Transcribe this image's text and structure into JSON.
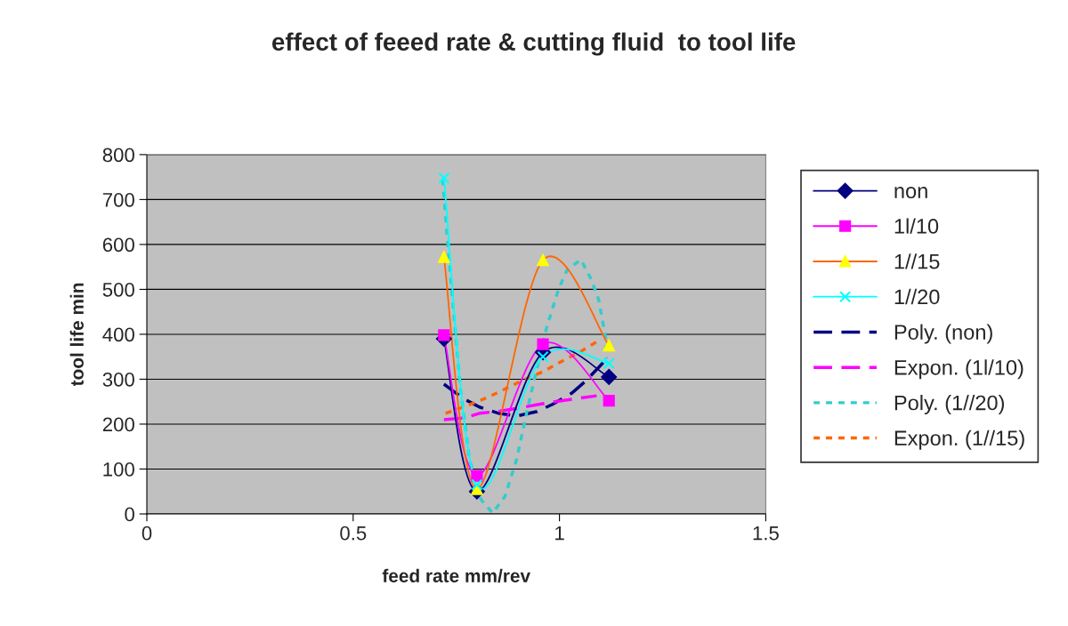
{
  "chart_data": {
    "type": "line",
    "title": "effect of feeed rate & cutting fluid  to tool life",
    "xlabel": "feed rate mm/rev",
    "ylabel": "tool life min",
    "xlim": [
      0,
      1.5
    ],
    "xticks": [
      0,
      0.5,
      1,
      1.5
    ],
    "ylim": [
      0,
      800
    ],
    "yticks": [
      0,
      100,
      200,
      300,
      400,
      500,
      600,
      700,
      800
    ],
    "grid": "y",
    "legend": "right",
    "series": [
      {
        "name": "non",
        "color": "#000080",
        "marker": "diamond",
        "x": [
          0.72,
          0.8,
          0.96,
          1.12
        ],
        "values": [
          390,
          50,
          360,
          305
        ]
      },
      {
        "name": "1l/10",
        "color": "#ff00ff",
        "marker": "square",
        "x": [
          0.72,
          0.8,
          0.96,
          1.12
        ],
        "values": [
          398,
          85,
          378,
          252
        ]
      },
      {
        "name": "1//15",
        "color": "#ff6600",
        "colors": [
          "#ffff00",
          "#ffff00",
          "#ffff00",
          "#ffff00"
        ],
        "marker": "triangle",
        "x": [
          0.72,
          0.8,
          0.96,
          1.12
        ],
        "values": [
          572,
          55,
          565,
          375
        ]
      },
      {
        "name": "1//20",
        "color": "#00ffff",
        "marker": "cross",
        "x": [
          0.72,
          0.8,
          0.96,
          1.12
        ],
        "values": [
          748,
          65,
          350,
          335
        ]
      },
      {
        "name": "Poly. (non)",
        "color": "#000080",
        "marker": "none",
        "line_style": "dashed",
        "x": [
          0.72,
          0.767,
          0.806,
          0.853,
          0.896,
          0.946,
          0.983,
          1.03,
          1.065,
          1.106
        ],
        "values": [
          289,
          257,
          238,
          224,
          218,
          228,
          244,
          269,
          297,
          337
        ]
      },
      {
        "name": "Expon. (1l/10)",
        "color": "#ff00ff",
        "marker": "none",
        "line_style": "dashed",
        "x": [
          0.72,
          0.771,
          0.806,
          0.857,
          0.903,
          0.95,
          0.989,
          1.043,
          1.09
        ],
        "values": [
          210,
          214,
          224,
          229,
          236,
          244,
          250,
          257,
          263
        ]
      },
      {
        "name": "Poly. (1//20)",
        "color": "#33cccc",
        "marker": "none",
        "line_style": "dotted",
        "x": [
          0.717,
          0.728,
          0.741,
          0.76,
          0.782,
          0.81,
          0.838,
          0.868,
          0.896,
          0.924,
          0.968,
          0.998,
          1.019,
          1.052,
          1.076,
          1.095,
          1.112,
          1.114
        ],
        "values": [
          745,
          616,
          477,
          279,
          121,
          32,
          2,
          39,
          121,
          240,
          412,
          501,
          544,
          566,
          524,
          477,
          392,
          346
        ]
      },
      {
        "name": "Expon. (1//15)",
        "color": "#ff6600",
        "marker": "none",
        "line_style": "dotted",
        "x": [
          0.724,
          0.773,
          0.825,
          0.87,
          0.914,
          0.961,
          1.004,
          1.052,
          1.095
        ],
        "values": [
          224,
          240,
          259,
          279,
          299,
          317,
          339,
          362,
          386
        ]
      }
    ]
  }
}
